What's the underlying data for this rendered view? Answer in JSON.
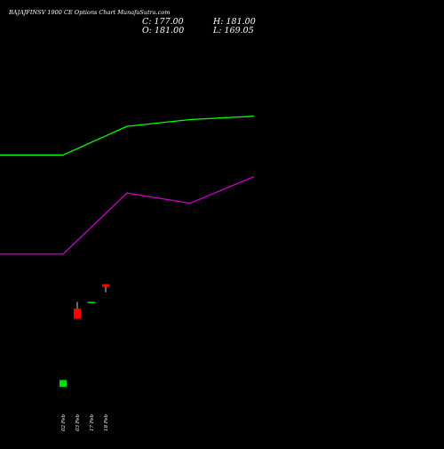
{
  "colors": {
    "background": "#000000",
    "text": "#ffffff",
    "line_upper": "#00ff00",
    "line_lower": "#cc00cc",
    "candle_up": "#00dd00",
    "candle_down": "#ff0000",
    "wick": "#ffffff"
  },
  "chart_data": {
    "type": "candlestick",
    "title": "BAJAJFINSV 1900 CE Options Chart MunafaSutra.com",
    "ohlc_summary": {
      "close": "C: 177.00",
      "high": "H: 181.00",
      "open": "O: 181.00",
      "low": "L: 169.05"
    },
    "x_categories": [
      "02 Feb",
      "03 Feb",
      "17 Feb",
      "18 Feb"
    ],
    "y_range": [
      0,
      540
    ],
    "candles": [
      {
        "date": "02 Feb",
        "open": 30,
        "high": 40,
        "low": 30,
        "close": 40
      },
      {
        "date": "03 Feb",
        "open": 145,
        "high": 155,
        "low": 130,
        "close": 130
      },
      {
        "date": "17 Feb",
        "open": 155,
        "high": 155,
        "low": 155,
        "close": 155
      },
      {
        "date": "18 Feb",
        "open": 181,
        "high": 181,
        "low": 169.05,
        "close": 177
      }
    ],
    "series": [
      {
        "color": "#00ff00",
        "points": [
          {
            "x": "start",
            "y": 371
          },
          {
            "x": "02 Feb",
            "y": 371
          },
          {
            "x": "03 Feb",
            "y": 413
          },
          {
            "x": "17 Feb",
            "y": 423
          },
          {
            "x": "18 Feb",
            "y": 428
          }
        ]
      },
      {
        "color": "#cc00cc",
        "points": [
          {
            "x": "start",
            "y": 225
          },
          {
            "x": "02 Feb",
            "y": 225
          },
          {
            "x": "03 Feb",
            "y": 315
          },
          {
            "x": "17 Feb",
            "y": 300
          },
          {
            "x": "18 Feb",
            "y": 339
          }
        ]
      }
    ],
    "grid": false,
    "legend": "none"
  }
}
